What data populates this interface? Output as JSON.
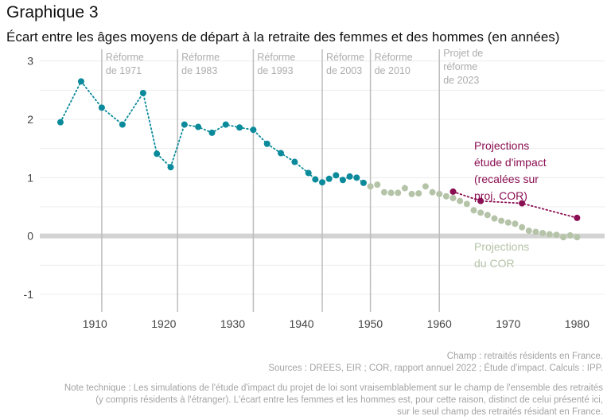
{
  "header": {
    "title": "Graphique 3",
    "subtitle": "Écart entre les âges moyens de départ à la retraite des femmes et des hommes (en années)"
  },
  "footer": {
    "champ": "Champ : retraités résidents en France.",
    "sources": "Sources : DREES, EIR ; COR, rapport annuel 2022 ; Étude d'impact. Calculs : IPP.",
    "note_lines": [
      "Note technique : Les simulations de l'étude d'impact du projet de loi sont vraisemblablement sur le champ de l'ensemble des retraités",
      "(y compris résidents à l'étranger). L'écart entre les femmes et les hommes est, pour cette raison, distinct de celui présenté ici,",
      "sur le seul champ des retraités résidant en France."
    ]
  },
  "colors": {
    "historical": "#0a8a9a",
    "cor": "#b5c4a8",
    "impact": "#8a0f52",
    "vline": "#bdbdbd",
    "zero": "#d3d3d3",
    "grid": "#ececec"
  },
  "chart_data": {
    "type": "scatter",
    "xlim": [
      1902,
      1984
    ],
    "ylim": [
      -1.3,
      3.2
    ],
    "x_ticks": [
      1910,
      1920,
      1930,
      1940,
      1950,
      1960,
      1970,
      1980
    ],
    "y_ticks": [
      -1,
      0,
      1,
      2,
      3
    ],
    "grid": true,
    "series": [
      {
        "key": "historical",
        "x": [
          1905,
          1908,
          1911,
          1914,
          1917,
          1919,
          1921,
          1923,
          1925,
          1927,
          1929,
          1931,
          1933,
          1935,
          1937,
          1939,
          1941,
          1942,
          1943,
          1944,
          1945,
          1946,
          1947,
          1948,
          1949
        ],
        "y": [
          1.95,
          2.65,
          2.2,
          1.91,
          2.45,
          1.41,
          1.18,
          1.91,
          1.87,
          1.77,
          1.91,
          1.86,
          1.82,
          1.58,
          1.42,
          1.27,
          1.08,
          0.97,
          0.92,
          0.98,
          1.04,
          0.96,
          1.02,
          1.0,
          0.91
        ]
      },
      {
        "key": "cor",
        "name": "Projections du COR",
        "x": [
          1950,
          1951,
          1952,
          1953,
          1954,
          1955,
          1956,
          1957,
          1958,
          1959,
          1960,
          1961,
          1962,
          1963,
          1964,
          1965,
          1966,
          1967,
          1968,
          1969,
          1970,
          1971,
          1972,
          1973,
          1974,
          1975,
          1976,
          1977,
          1978,
          1979,
          1980
        ],
        "y": [
          0.85,
          0.88,
          0.75,
          0.74,
          0.74,
          0.82,
          0.72,
          0.73,
          0.85,
          0.75,
          0.72,
          0.68,
          0.65,
          0.6,
          0.55,
          0.44,
          0.4,
          0.36,
          0.3,
          0.26,
          0.23,
          0.21,
          0.15,
          0.09,
          0.07,
          0.05,
          0.03,
          0.02,
          -0.02,
          0.01,
          -0.02
        ]
      },
      {
        "key": "impact",
        "name": "Projections étude d'impact (recalées sur proj. COR)",
        "x": [
          1962,
          1966,
          1972,
          1980
        ],
        "y": [
          0.76,
          0.6,
          0.56,
          0.31
        ]
      }
    ],
    "reforms": [
      {
        "year": 1911,
        "label": [
          "Réforme",
          "de 1971"
        ]
      },
      {
        "year": 1922,
        "label": [
          "Réforme",
          "de 1983"
        ]
      },
      {
        "year": 1933,
        "label": [
          "Réforme",
          "de 1993"
        ]
      },
      {
        "year": 1943,
        "label": [
          "Réforme",
          "de 2003"
        ]
      },
      {
        "year": 1950,
        "label": [
          "Réforme",
          "de 2010"
        ]
      },
      {
        "year": 1960,
        "label": [
          "Projet de",
          "réforme",
          "de 2023"
        ]
      }
    ],
    "annotations": {
      "impact": [
        "Projections",
        "étude d'impact",
        "(recalées sur",
        "proj. COR)"
      ],
      "cor": [
        "Projections",
        "du COR"
      ]
    }
  }
}
